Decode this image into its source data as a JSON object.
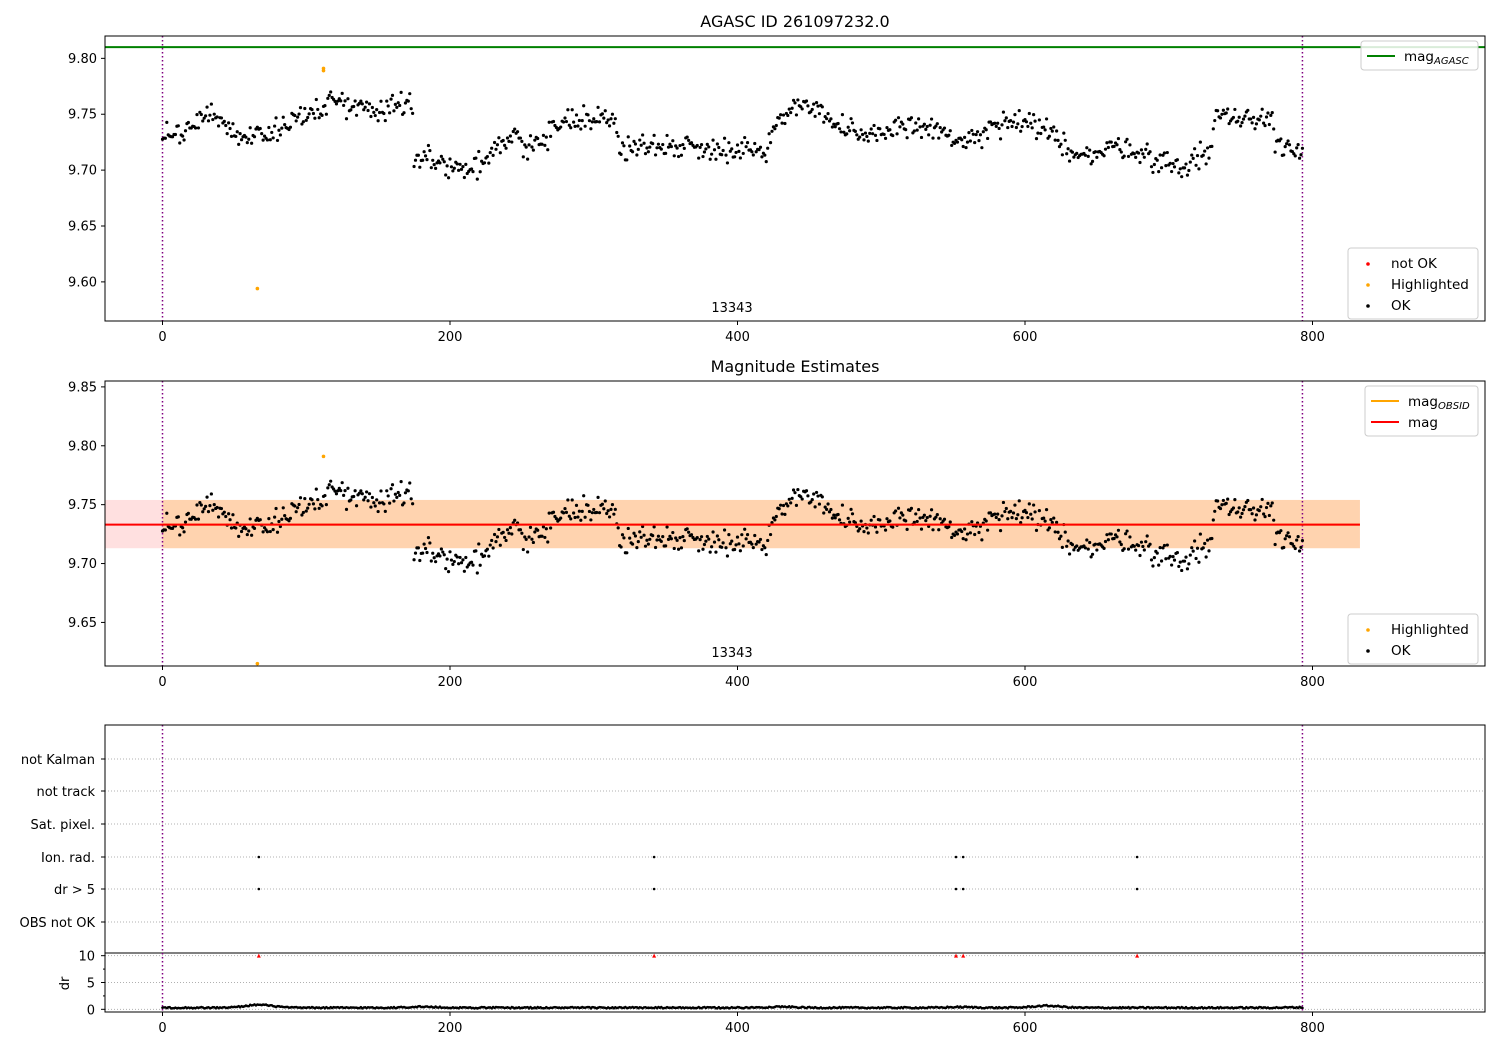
{
  "chart_data": [
    {
      "type": "scatter",
      "title": "AGASC ID 261097232.0",
      "annotation": "13343",
      "xlim": [
        -40,
        920
      ],
      "ylim": [
        9.565,
        9.82
      ],
      "xticks": [
        0,
        200,
        400,
        600,
        800
      ],
      "yticks": [
        9.6,
        9.65,
        9.7,
        9.75,
        9.8
      ],
      "ytick_labels": [
        "9.60",
        "9.65",
        "9.70",
        "9.75",
        "9.80"
      ],
      "grid": false,
      "hlines": [
        {
          "name": "mag_AGASC",
          "y": 9.81,
          "color": "#008000"
        }
      ],
      "vlines": [
        {
          "x": 0,
          "color": "#800080",
          "style": "dotted"
        },
        {
          "x": 793,
          "color": "#800080",
          "style": "dotted"
        }
      ],
      "legend_top": {
        "placement": "top-right",
        "entries": [
          {
            "label": "mag",
            "sub": "AGASC",
            "color": "#008000",
            "kind": "line"
          }
        ]
      },
      "legend_bottom": {
        "placement": "bottom-right",
        "entries": [
          {
            "label": "not OK",
            "color": "#ff0000",
            "kind": "point"
          },
          {
            "label": "Highlighted",
            "color": "#ffa500",
            "kind": "point"
          },
          {
            "label": "OK",
            "color": "#000000",
            "kind": "point"
          }
        ]
      },
      "series": [
        {
          "name": "OK",
          "color": "#000000",
          "points": "ok_mag_trace"
        },
        {
          "name": "Highlighted",
          "color": "#ffa500",
          "x": [
            66,
            112,
            112
          ],
          "y": [
            9.594,
            9.791,
            9.789
          ]
        }
      ]
    },
    {
      "type": "scatter",
      "title": "Magnitude Estimates",
      "annotation": "13343",
      "xlim": [
        -40,
        920
      ],
      "ylim": [
        9.613,
        9.855
      ],
      "xticks": [
        0,
        200,
        400,
        600,
        800
      ],
      "yticks": [
        9.65,
        9.7,
        9.75,
        9.8,
        9.85
      ],
      "ytick_labels": [
        "9.65",
        "9.70",
        "9.75",
        "9.80",
        "9.85"
      ],
      "grid": false,
      "band_obsid": {
        "x": [
          0,
          833
        ],
        "y": [
          9.713,
          9.754
        ],
        "color": "#ffa500",
        "opacity": 0.22
      },
      "band_mag": {
        "x": [
          -40,
          833
        ],
        "y": [
          9.713,
          9.754
        ],
        "color": "#ff0000",
        "opacity": 0.12
      },
      "hlines": [
        {
          "name": "mag_OBSID",
          "y": 9.733,
          "x": [
            0,
            833
          ],
          "color": "#ffa500"
        },
        {
          "name": "mag",
          "y": 9.733,
          "x": [
            -40,
            833
          ],
          "color": "#ff0000"
        }
      ],
      "vlines": [
        {
          "x": 0,
          "color": "#800080",
          "style": "dotted"
        },
        {
          "x": 793,
          "color": "#800080",
          "style": "dotted"
        }
      ],
      "legend_top": {
        "placement": "top-right",
        "entries": [
          {
            "label": "mag",
            "sub": "OBSID",
            "color": "#ffa500",
            "kind": "line"
          },
          {
            "label": "mag",
            "sub": "",
            "color": "#ff0000",
            "kind": "line"
          }
        ]
      },
      "legend_bottom": {
        "placement": "bottom-right",
        "entries": [
          {
            "label": "Highlighted",
            "color": "#ffa500",
            "kind": "point"
          },
          {
            "label": "OK",
            "color": "#000000",
            "kind": "point"
          }
        ]
      },
      "series": [
        {
          "name": "OK",
          "color": "#000000",
          "points": "ok_mag_trace"
        },
        {
          "name": "Highlighted",
          "color": "#ffa500",
          "x": [
            66,
            112
          ],
          "y": [
            9.615,
            9.791
          ]
        }
      ]
    },
    {
      "type": "scatter",
      "title": "",
      "xlim": [
        -40,
        920
      ],
      "xticks": [
        0,
        200,
        400,
        600,
        800
      ],
      "categories": [
        "not Kalman",
        "not track",
        "Sat. pixel.",
        "Ion. rad.",
        "dr > 5",
        "OBS not OK"
      ],
      "flags": {
        "not Kalman": [],
        "not track": [],
        "Sat. pixel.": [],
        "Ion. rad.": [
          67,
          342,
          552,
          557,
          678
        ],
        "dr > 5": [
          67,
          342,
          552,
          557,
          678
        ],
        "OBS not OK": []
      },
      "vlines": [
        {
          "x": 0,
          "color": "#800080",
          "style": "dotted"
        },
        {
          "x": 793,
          "color": "#800080",
          "style": "dotted"
        }
      ],
      "dr_panel": {
        "ylabel": "dr",
        "ylim": [
          -0.5,
          10.5
        ],
        "yticks": [
          0,
          5,
          10
        ],
        "ytick_labels": [
          "0",
          "5",
          "10"
        ],
        "clipped": {
          "x": [
            67,
            342,
            552,
            557,
            678
          ],
          "y": 10,
          "color": "#ff0000"
        },
        "baseline": 0.3,
        "bumps": [
          [
            67,
            1.2
          ],
          [
            180,
            0.6
          ],
          [
            430,
            0.6
          ],
          [
            555,
            0.5
          ],
          [
            615,
            0.9
          ],
          [
            790,
            0.4
          ]
        ]
      }
    }
  ],
  "ok_mag_trace": [
    [
      0,
      9.733
    ],
    [
      10,
      9.735
    ],
    [
      20,
      9.74
    ],
    [
      30,
      9.75
    ],
    [
      40,
      9.745
    ],
    [
      50,
      9.735
    ],
    [
      60,
      9.73
    ],
    [
      70,
      9.73
    ],
    [
      80,
      9.735
    ],
    [
      90,
      9.745
    ],
    [
      100,
      9.75
    ],
    [
      110,
      9.755
    ],
    [
      120,
      9.763
    ],
    [
      130,
      9.758
    ],
    [
      140,
      9.755
    ],
    [
      150,
      9.755
    ],
    [
      160,
      9.758
    ],
    [
      170,
      9.76
    ],
    [
      174,
      9.756
    ],
    [
      175,
      9.716
    ],
    [
      185,
      9.71
    ],
    [
      195,
      9.706
    ],
    [
      205,
      9.703
    ],
    [
      215,
      9.7
    ],
    [
      225,
      9.71
    ],
    [
      235,
      9.72
    ],
    [
      245,
      9.728
    ],
    [
      255,
      9.723
    ],
    [
      265,
      9.725
    ],
    [
      275,
      9.738
    ],
    [
      285,
      9.748
    ],
    [
      295,
      9.748
    ],
    [
      305,
      9.745
    ],
    [
      315,
      9.745
    ],
    [
      317,
      9.72
    ],
    [
      330,
      9.72
    ],
    [
      345,
      9.723
    ],
    [
      360,
      9.722
    ],
    [
      375,
      9.72
    ],
    [
      390,
      9.72
    ],
    [
      405,
      9.718
    ],
    [
      420,
      9.72
    ],
    [
      430,
      9.745
    ],
    [
      440,
      9.76
    ],
    [
      450,
      9.76
    ],
    [
      460,
      9.75
    ],
    [
      470,
      9.738
    ],
    [
      480,
      9.732
    ],
    [
      490,
      9.728
    ],
    [
      500,
      9.733
    ],
    [
      510,
      9.74
    ],
    [
      520,
      9.74
    ],
    [
      530,
      9.738
    ],
    [
      540,
      9.735
    ],
    [
      550,
      9.728
    ],
    [
      560,
      9.725
    ],
    [
      570,
      9.73
    ],
    [
      580,
      9.74
    ],
    [
      590,
      9.742
    ],
    [
      600,
      9.74
    ],
    [
      610,
      9.738
    ],
    [
      620,
      9.73
    ],
    [
      630,
      9.72
    ],
    [
      640,
      9.715
    ],
    [
      650,
      9.713
    ],
    [
      660,
      9.72
    ],
    [
      670,
      9.723
    ],
    [
      680,
      9.715
    ],
    [
      690,
      9.71
    ],
    [
      700,
      9.705
    ],
    [
      710,
      9.703
    ],
    [
      720,
      9.71
    ],
    [
      730,
      9.72
    ],
    [
      733,
      9.755
    ],
    [
      745,
      9.745
    ],
    [
      760,
      9.745
    ],
    [
      772,
      9.75
    ],
    [
      774,
      9.725
    ],
    [
      785,
      9.72
    ],
    [
      793,
      9.72
    ]
  ]
}
